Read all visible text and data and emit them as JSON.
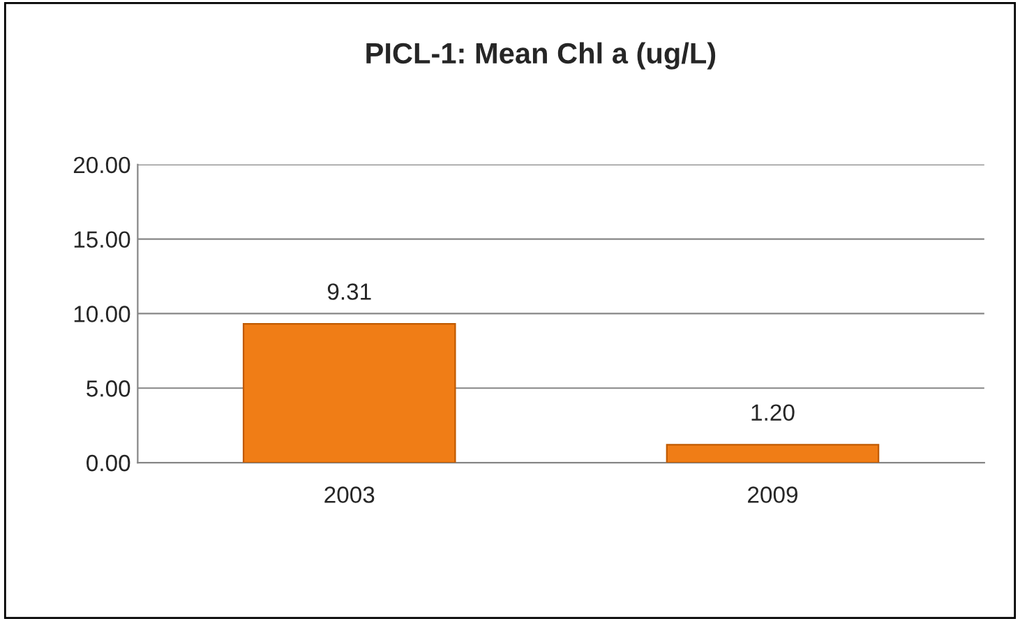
{
  "chart_data": {
    "type": "bar",
    "title": "PICL-1: Mean Chl a (ug/L)",
    "categories": [
      "2003",
      "2009"
    ],
    "values": [
      9.31,
      1.2
    ],
    "value_labels": [
      "9.31",
      "1.20"
    ],
    "color": "#f07d16",
    "ylim": [
      0,
      20
    ],
    "yticks": [
      {
        "value": 0,
        "label": "0.00"
      },
      {
        "value": 5,
        "label": "5.00"
      },
      {
        "value": 10,
        "label": "10.00"
      },
      {
        "value": 15,
        "label": "15.00"
      },
      {
        "value": 20,
        "label": "20.00"
      }
    ],
    "grid": "y",
    "legend": false
  }
}
